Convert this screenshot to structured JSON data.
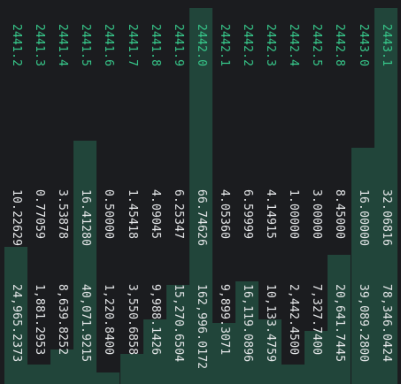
{
  "colors": {
    "background": "#1b1c1f",
    "bid_price": "#37c98b",
    "text": "#e6e8ea",
    "depth_fill": "#1f4f3e"
  },
  "rows": [
    {
      "price": "2441.2",
      "quantity": "10.22629",
      "total": "24,965.2373",
      "depth": 0.36
    },
    {
      "price": "2441.3",
      "quantity": "0.77059",
      "total": "1,881.2953",
      "depth": 0.05
    },
    {
      "price": "2441.4",
      "quantity": "3.53878",
      "total": "8,639.8252",
      "depth": 0.09
    },
    {
      "price": "2441.5",
      "quantity": "16.41280",
      "total": "40,071.9215",
      "depth": 0.64
    },
    {
      "price": "2441.6",
      "quantity": "0.50000",
      "total": "1,220.8400",
      "depth": 0.03
    },
    {
      "price": "2441.7",
      "quantity": "1.45418",
      "total": "3,550.6858",
      "depth": 0.08
    },
    {
      "price": "2441.8",
      "quantity": "4.09045",
      "total": "9,988.1426",
      "depth": 0.17
    },
    {
      "price": "2441.9",
      "quantity": "6.25347",
      "total": "15,270.6504",
      "depth": 0.26
    },
    {
      "price": "2442.0",
      "quantity": "66.74626",
      "total": "162,996.0172",
      "depth": 1.0
    },
    {
      "price": "2442.1",
      "quantity": "4.05360",
      "total": "9,899.3071",
      "depth": 0.16
    },
    {
      "price": "2442.2",
      "quantity": "6.59999",
      "total": "16,119.0896",
      "depth": 0.27
    },
    {
      "price": "2442.3",
      "quantity": "4.14915",
      "total": "10,133.4759",
      "depth": 0.17
    },
    {
      "price": "2442.4",
      "quantity": "1.00000",
      "total": "2,442.4500",
      "depth": 0.05
    },
    {
      "price": "2442.5",
      "quantity": "3.00000",
      "total": "7,327.7400",
      "depth": 0.14
    },
    {
      "price": "2442.8",
      "quantity": "8.45000",
      "total": "20,641.7445",
      "depth": 0.34
    },
    {
      "price": "2443.0",
      "quantity": "16.00000",
      "total": "39,089.2800",
      "depth": 0.62
    },
    {
      "price": "2443.1",
      "quantity": "32.06816",
      "total": "78,346.0424",
      "depth": 1.0
    }
  ]
}
